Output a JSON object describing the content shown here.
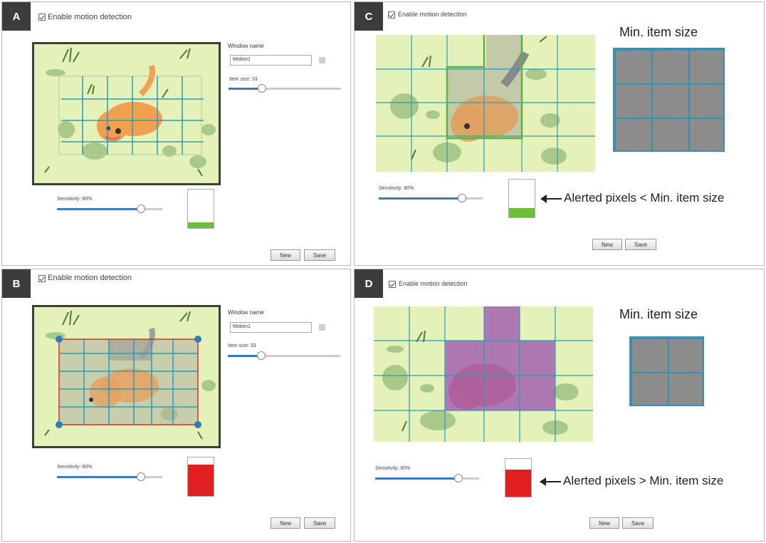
{
  "panels": [
    {
      "tag": "A",
      "enable_label": "Enable motion detection",
      "window_name_label": "Window name",
      "window_name_value": "Motion1",
      "item_size_label": "Item size: 33",
      "item_size_level": 0.3,
      "sensitivity_label": "Sensitivity: 80%",
      "sensitivity_level": 0.8,
      "alert_level": 0.15,
      "alert_color": "#6cbf3a",
      "new_label": "New",
      "save_label": "Save"
    },
    {
      "tag": "B",
      "enable_label": "Enable motion detection",
      "window_name_label": "Window name",
      "window_name_value": "Motion1",
      "item_size_label": "Item size: 33",
      "item_size_level": 0.3,
      "sensitivity_label": "Sensitivity: 80%",
      "sensitivity_level": 0.8,
      "alert_level": 0.82,
      "alert_color": "#e02020",
      "new_label": "New",
      "save_label": "Save"
    },
    {
      "tag": "C",
      "enable_label": "Enable motion detection",
      "min_item_title": "Min. item size",
      "sensitivity_label": "Sensitivity: 80%",
      "sensitivity_level": 0.8,
      "alert_level": 0.25,
      "alert_color": "#6cbf3a",
      "annotation": "Alerted pixels < Min. item size",
      "new_label": "New",
      "save_label": "Save"
    },
    {
      "tag": "D",
      "enable_label": "Enable motion detection",
      "min_item_title": "Min. item size",
      "sensitivity_label": "Sensitivity: 80%",
      "sensitivity_level": 0.8,
      "alert_level": 0.72,
      "alert_color": "#e02020",
      "annotation": "Alerted pixels > Min. item size",
      "new_label": "New",
      "save_label": "Save"
    }
  ],
  "colors": {
    "grid_line": "#2a9db3",
    "region_border": "#d23030",
    "handle": "#2a7fb5",
    "scene_bg": "#e4f2b9",
    "detection_fill": "#9c4fb0"
  },
  "icons": [
    "checkbox-checked-icon",
    "color-swatch-icon",
    "slider-knob-icon",
    "cat-illustration"
  ]
}
